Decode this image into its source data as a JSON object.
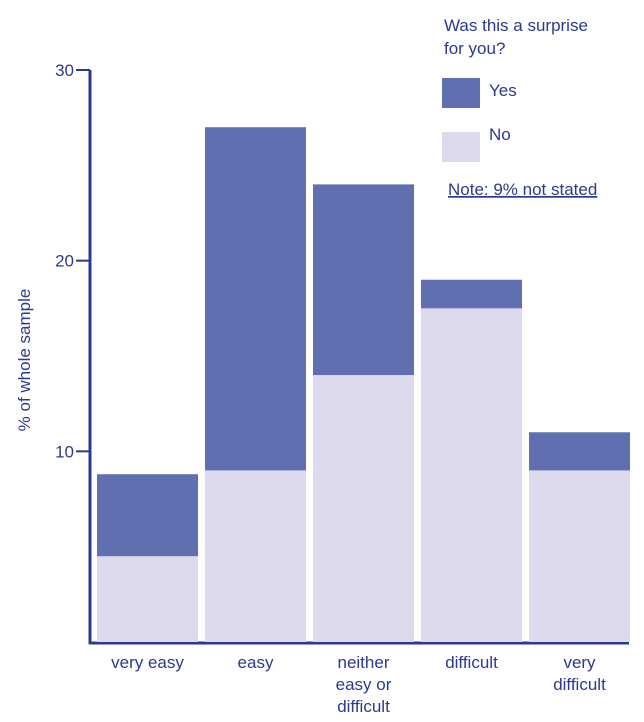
{
  "colors": {
    "yes": "#5f6faf",
    "no": "#dcdaec",
    "axis": "#2a3a8f",
    "text": "#2a3a8f"
  },
  "chart_data": {
    "type": "bar",
    "stacked": true,
    "categories": [
      "very easy",
      "easy",
      "neither easy or difficult",
      "difficult",
      "very difficult"
    ],
    "category_label_lines": [
      [
        "very easy"
      ],
      [
        "easy"
      ],
      [
        "neither",
        "easy or",
        "difficult"
      ],
      [
        "difficult"
      ],
      [
        "very",
        "difficult"
      ]
    ],
    "series": [
      {
        "name": "No",
        "values": [
          4.5,
          9,
          14,
          17.5,
          9
        ],
        "color_key": "no"
      },
      {
        "name": "Yes",
        "values": [
          4.3,
          18,
          10,
          1.5,
          2
        ],
        "color_key": "yes"
      }
    ],
    "ylabel": "% of whole sample",
    "ylim": [
      0,
      30
    ],
    "yticks": [
      10,
      20,
      30
    ],
    "grid": false,
    "legend": {
      "title_lines": [
        "Was this a surprise",
        "for you?"
      ],
      "placement": "top-right",
      "entries": [
        {
          "label": "Yes",
          "color_key": "yes"
        },
        {
          "label": "No",
          "color_key": "no"
        }
      ]
    },
    "note": "Note: 9% not stated"
  }
}
